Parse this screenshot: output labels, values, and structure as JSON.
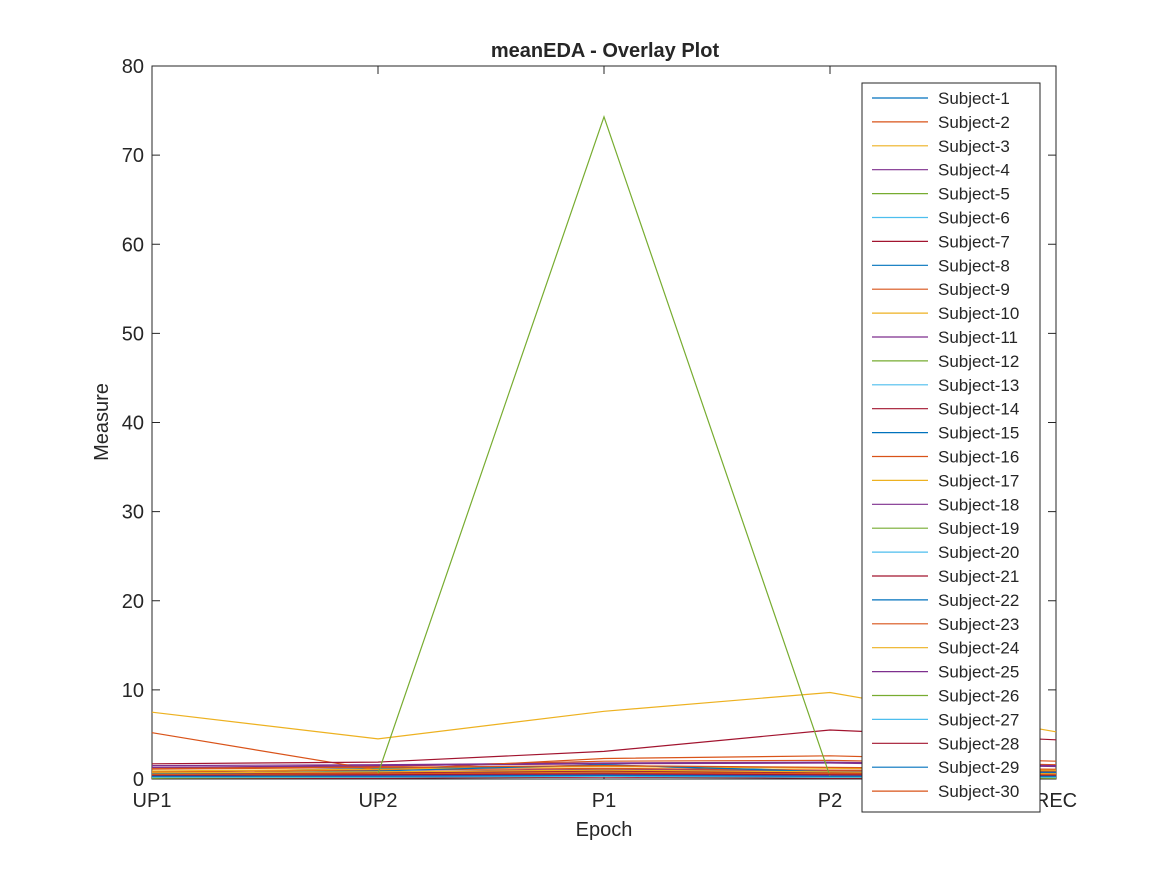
{
  "chart_data": {
    "type": "line",
    "title": "meanEDA - Overlay Plot",
    "xlabel": "Epoch",
    "ylabel": "Measure",
    "categories": [
      "UP1",
      "UP2",
      "P1",
      "P2",
      "REC"
    ],
    "ylim": [
      0,
      80
    ],
    "yticks": [
      0,
      10,
      20,
      30,
      40,
      50,
      60,
      70,
      80
    ],
    "grid": false,
    "legend_position": "top-right",
    "colors": [
      "#0072BD",
      "#D95319",
      "#EDB120",
      "#7E2F8E",
      "#77AC30",
      "#4DBEEE",
      "#A2142F"
    ],
    "series": [
      {
        "name": "Subject-1",
        "values": [
          0.7,
          1.2,
          1.5,
          0.9,
          0.8
        ]
      },
      {
        "name": "Subject-2",
        "values": [
          1.2,
          1.4,
          2.0,
          2.1,
          1.6
        ]
      },
      {
        "name": "Subject-3",
        "values": [
          0.4,
          0.6,
          0.8,
          0.6,
          0.5
        ]
      },
      {
        "name": "Subject-4",
        "values": [
          1.5,
          1.6,
          1.8,
          1.9,
          1.5
        ]
      },
      {
        "name": "Subject-5",
        "values": [
          0.2,
          0.3,
          0.4,
          0.3,
          0.2
        ]
      },
      {
        "name": "Subject-6",
        "values": [
          0.5,
          0.6,
          0.7,
          0.5,
          0.4
        ]
      },
      {
        "name": "Subject-7",
        "values": [
          0.1,
          0.1,
          0.2,
          0.1,
          0.1
        ]
      },
      {
        "name": "Subject-8",
        "values": [
          0.3,
          0.4,
          0.5,
          0.4,
          0.3
        ]
      },
      {
        "name": "Subject-9",
        "values": [
          5.2,
          1.0,
          2.3,
          2.6,
          2.0
        ]
      },
      {
        "name": "Subject-10",
        "values": [
          7.5,
          4.5,
          7.6,
          9.7,
          5.3
        ]
      },
      {
        "name": "Subject-11",
        "values": [
          0.6,
          0.8,
          1.1,
          0.9,
          0.7
        ]
      },
      {
        "name": "Subject-12",
        "values": [
          0.3,
          0.5,
          0.6,
          0.4,
          0.3
        ]
      },
      {
        "name": "Subject-13",
        "values": [
          0.2,
          0.3,
          0.3,
          0.2,
          0.2
        ]
      },
      {
        "name": "Subject-14",
        "values": [
          1.7,
          1.9,
          3.1,
          5.5,
          4.4
        ]
      },
      {
        "name": "Subject-15",
        "values": [
          0.4,
          0.5,
          0.6,
          0.5,
          0.4
        ]
      },
      {
        "name": "Subject-16",
        "values": [
          0.8,
          1.0,
          1.2,
          1.0,
          0.9
        ]
      },
      {
        "name": "Subject-17",
        "values": [
          0.9,
          1.1,
          1.4,
          1.2,
          1.0
        ]
      },
      {
        "name": "Subject-18",
        "values": [
          1.3,
          1.5,
          1.7,
          1.8,
          1.4
        ]
      },
      {
        "name": "Subject-19",
        "values": [
          0.1,
          0.2,
          0.3,
          0.2,
          0.1
        ]
      },
      {
        "name": "Subject-20",
        "values": [
          0.2,
          0.3,
          0.4,
          0.3,
          0.2
        ]
      },
      {
        "name": "Subject-21",
        "values": [
          0.5,
          0.7,
          0.9,
          0.7,
          0.6
        ]
      },
      {
        "name": "Subject-22",
        "values": [
          0.6,
          0.9,
          1.6,
          0.8,
          0.7
        ]
      },
      {
        "name": "Subject-23",
        "values": [
          1.1,
          1.3,
          1.5,
          1.3,
          1.1
        ]
      },
      {
        "name": "Subject-24",
        "values": [
          0.7,
          0.8,
          1.0,
          0.8,
          0.6
        ]
      },
      {
        "name": "Subject-25",
        "values": [
          0.3,
          0.4,
          0.5,
          0.4,
          0.3
        ]
      },
      {
        "name": "Subject-26",
        "values": [
          0.1,
          0.6,
          74.3,
          0.3,
          0.1
        ]
      },
      {
        "name": "Subject-27",
        "values": [
          0.2,
          0.2,
          0.3,
          0.2,
          0.2
        ]
      },
      {
        "name": "Subject-28",
        "values": [
          0.4,
          0.5,
          0.6,
          0.5,
          0.4
        ]
      },
      {
        "name": "Subject-29",
        "values": [
          0.3,
          0.3,
          0.4,
          0.3,
          0.3
        ]
      },
      {
        "name": "Subject-30",
        "values": [
          0.5,
          0.6,
          0.7,
          0.6,
          0.5
        ]
      }
    ]
  }
}
